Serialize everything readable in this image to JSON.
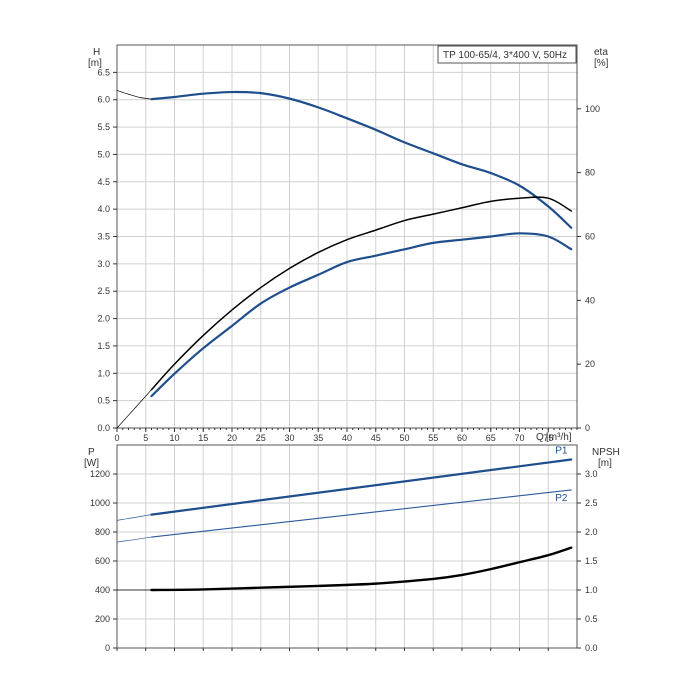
{
  "colors": {
    "blue": "#1f4e8c",
    "thin_blue": "#2a5a9a",
    "black": "#000000",
    "grid": "#d0d0d0"
  },
  "top": {
    "title": "TP 100-65/4, 3*400 V, 50Hz",
    "left_axis": {
      "name": "H",
      "unit": "[m]"
    },
    "right_axis": {
      "name": "eta",
      "unit": "[%]"
    }
  },
  "bottom": {
    "left_axis": {
      "name": "P",
      "unit": "[W]"
    },
    "right_axis": {
      "name": "NPSH",
      "unit": "[m]"
    }
  },
  "x_axis": {
    "name": "Q",
    "unit": "[m³/h]"
  },
  "chart_data": [
    {
      "type": "line",
      "panel": "head_and_efficiency",
      "title": "TP 100-65/4, 3*400 V, 50Hz",
      "xlabel": "Q [m³/h]",
      "ylabel": "H [m]",
      "y2label": "eta [%]",
      "xlim": [
        0,
        80
      ],
      "ylim": [
        0,
        7
      ],
      "y2lim": [
        0,
        120
      ],
      "xticks": [
        "0",
        "5",
        "10",
        "15",
        "20",
        "25",
        "30",
        "35",
        "40",
        "45",
        "50",
        "55",
        "60",
        "65",
        "70",
        "75"
      ],
      "yticks": [
        "0.0",
        "0.5",
        "1.0",
        "1.5",
        "2.0",
        "2.5",
        "3.0",
        "3.5",
        "4.0",
        "4.5",
        "5.0",
        "5.5",
        "6.0",
        "6.5"
      ],
      "y2ticks": [
        "0",
        "20",
        "40",
        "60",
        "80",
        "100"
      ],
      "grid": true,
      "series": [
        {
          "axis": "left",
          "style": "thin",
          "x": [
            0,
            2,
            4,
            6
          ],
          "y": [
            6.17,
            6.1,
            6.04,
            6.01
          ]
        },
        {
          "axis": "left",
          "style": "thick",
          "x": [
            6,
            10,
            15,
            20,
            25,
            30,
            35,
            40,
            45,
            50,
            55,
            60,
            65,
            70,
            75,
            79
          ],
          "y": [
            6.01,
            6.05,
            6.11,
            6.14,
            6.12,
            6.02,
            5.86,
            5.66,
            5.45,
            5.22,
            5.02,
            4.82,
            4.66,
            4.43,
            4.05,
            3.66
          ]
        },
        {
          "axis": "right",
          "style": "thin",
          "x": [
            0,
            3,
            6
          ],
          "y": [
            0,
            6,
            12
          ]
        },
        {
          "axis": "right",
          "style": "medium",
          "x": [
            6,
            10,
            15,
            20,
            25,
            30,
            35,
            40,
            45,
            50,
            55,
            60,
            65,
            70,
            75,
            79
          ],
          "y": [
            12,
            20,
            29,
            37,
            44,
            50,
            55,
            59,
            62,
            65,
            67,
            69,
            71,
            72,
            72,
            68
          ]
        },
        {
          "axis": "right",
          "style": "thick",
          "x": [
            6,
            10,
            15,
            20,
            25,
            30,
            35,
            40,
            45,
            50,
            55,
            60,
            65,
            70,
            75,
            79
          ],
          "y": [
            10,
            17,
            25,
            32,
            39,
            44,
            48,
            52,
            54,
            56,
            58,
            59,
            60,
            61,
            60,
            56
          ]
        }
      ]
    },
    {
      "type": "line",
      "panel": "power_and_npsh",
      "xlabel": "Q [m³/h]",
      "ylabel": "P [W]",
      "y2label": "NPSH [m]",
      "xlim": [
        0,
        80
      ],
      "ylim": [
        0,
        1400
      ],
      "y2lim": [
        0,
        3.5
      ],
      "yticks": [
        "0",
        "200",
        "400",
        "600",
        "800",
        "1000",
        "1200"
      ],
      "y2ticks": [
        "0.0",
        "0.5",
        "1.0",
        "1.5",
        "2.0",
        "2.5",
        "3.0"
      ],
      "grid": true,
      "series": [
        {
          "axis": "left",
          "style": "thin-lead",
          "x": [
            0,
            6
          ],
          "y": [
            880,
            920
          ]
        },
        {
          "name": "P1",
          "axis": "left",
          "style": "thick-blue",
          "x": [
            6,
            79
          ],
          "y": [
            920,
            1300
          ]
        },
        {
          "axis": "left",
          "style": "thin-lead",
          "x": [
            0,
            6
          ],
          "y": [
            730,
            765
          ]
        },
        {
          "name": "P2",
          "axis": "left",
          "style": "thin-blue",
          "x": [
            6,
            79
          ],
          "y": [
            765,
            1090
          ]
        },
        {
          "axis": "right",
          "style": "thin-lead-black",
          "x": [
            0,
            6
          ],
          "y": [
            1.0,
            1.0
          ]
        },
        {
          "axis": "right",
          "style": "thick-black",
          "x": [
            6,
            15,
            25,
            35,
            45,
            55,
            60,
            65,
            70,
            75,
            79
          ],
          "y": [
            1.0,
            1.01,
            1.04,
            1.07,
            1.11,
            1.19,
            1.26,
            1.36,
            1.48,
            1.6,
            1.73
          ]
        }
      ]
    }
  ]
}
